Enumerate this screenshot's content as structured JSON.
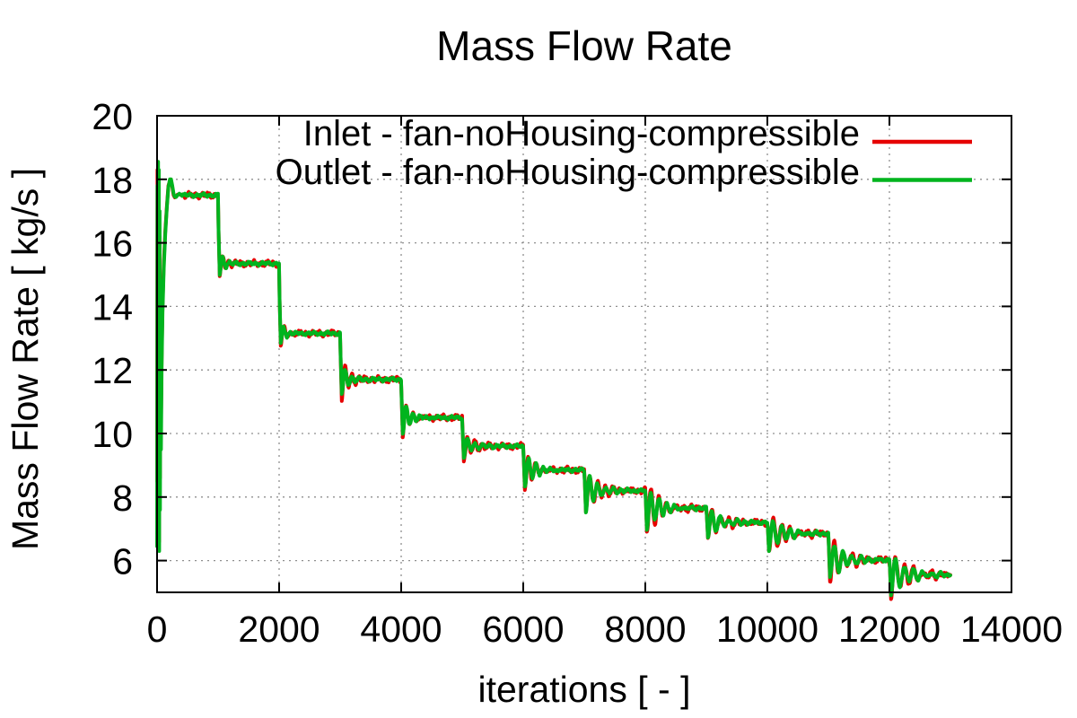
{
  "chart_data": {
    "type": "line",
    "title": "Mass Flow Rate",
    "xlabel": "iterations [ - ]",
    "ylabel": "Mass Flow Rate [ kg/s ]",
    "xlim": [
      0,
      14000
    ],
    "ylim": [
      5,
      20
    ],
    "xticks": [
      0,
      2000,
      4000,
      6000,
      8000,
      10000,
      12000,
      14000
    ],
    "yticks": [
      6,
      8,
      10,
      12,
      14,
      16,
      18,
      20
    ],
    "grid": true,
    "grid_style": "dotted-gray",
    "legend_position": "top-right-inside",
    "end_iteration": 13000,
    "series": [
      {
        "name": "Inlet - fan-noHousing-compressible",
        "color": "#e60000",
        "role": "inlet"
      },
      {
        "name": "Outlet - fan-noHousing-compressible",
        "color": "#00b41e",
        "role": "outlet"
      }
    ],
    "series_note": "inlet and outlet curves are nearly identical (mass conservation); red inlet line is mostly hidden behind green outlet line, peeking out at transients",
    "initial_transient": {
      "start_value": 6.45,
      "spike_high": 18.55,
      "spike_low": 6.3,
      "overshoot_peak": 18.0,
      "overshoot_at_iteration": 210,
      "settled_value": 17.5,
      "settled_by_iteration": 400
    },
    "steps": [
      {
        "from": 0,
        "to": 1000,
        "level": 17.5
      },
      {
        "from": 1000,
        "to": 2000,
        "level": 15.35,
        "undershoot": 15.0
      },
      {
        "from": 2000,
        "to": 3000,
        "level": 13.15,
        "undershoot": 12.8
      },
      {
        "from": 3000,
        "to": 4000,
        "level": 11.7,
        "undershoot": 11.2
      },
      {
        "from": 4000,
        "to": 5000,
        "level": 10.5,
        "undershoot": 10.0
      },
      {
        "from": 5000,
        "to": 6000,
        "level": 9.6,
        "undershoot": 9.2
      },
      {
        "from": 6000,
        "to": 7000,
        "level": 8.85,
        "undershoot": 8.35
      },
      {
        "from": 7000,
        "to": 8000,
        "level": 8.2,
        "undershoot": 7.55
      },
      {
        "from": 8000,
        "to": 9000,
        "level": 7.65,
        "undershoot": 6.95
      },
      {
        "from": 9000,
        "to": 10000,
        "level": 7.2,
        "undershoot": 6.75
      },
      {
        "from": 10000,
        "to": 11000,
        "level": 6.85,
        "undershoot": 6.3
      },
      {
        "from": 11000,
        "to": 12000,
        "level": 6.02,
        "undershoot": 5.45
      },
      {
        "from": 12000,
        "to": 13000,
        "level": 5.55,
        "undershoot": 4.93
      }
    ]
  }
}
